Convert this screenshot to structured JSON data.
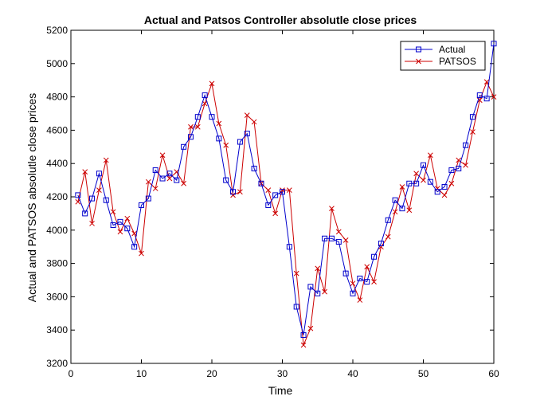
{
  "chart_data": {
    "type": "line",
    "title": "Actual and Patsos Controller absolutle close prices",
    "xlabel": "Time",
    "ylabel": "Actual and PATSOS absolutle close prices",
    "xlim": [
      0,
      60
    ],
    "ylim": [
      3200,
      5200
    ],
    "xticks": [
      0,
      10,
      20,
      30,
      40,
      50,
      60
    ],
    "yticks": [
      3200,
      3400,
      3600,
      3800,
      4000,
      4200,
      4400,
      4600,
      4800,
      5000,
      5200
    ],
    "grid": false,
    "legend_position": "top-right",
    "x": [
      1,
      2,
      3,
      4,
      5,
      6,
      7,
      8,
      9,
      10,
      11,
      12,
      13,
      14,
      15,
      16,
      17,
      18,
      19,
      20,
      21,
      22,
      23,
      24,
      25,
      26,
      27,
      28,
      29,
      30,
      31,
      32,
      33,
      34,
      35,
      36,
      37,
      38,
      39,
      40,
      41,
      42,
      43,
      44,
      45,
      46,
      47,
      48,
      49,
      50,
      51,
      52,
      53,
      54,
      55,
      56,
      57,
      58,
      59,
      60
    ],
    "series": [
      {
        "name": "Actual",
        "color": "#0000cc",
        "marker": "square",
        "values": [
          4210,
          4100,
          4190,
          4340,
          4180,
          4030,
          4050,
          4010,
          3900,
          4150,
          4190,
          4360,
          4310,
          4340,
          4300,
          4500,
          4560,
          4680,
          4810,
          4680,
          4550,
          4300,
          4230,
          4530,
          4580,
          4370,
          4280,
          4150,
          4210,
          4230,
          3900,
          3540,
          3370,
          3660,
          3620,
          3950,
          3950,
          3930,
          3740,
          3620,
          3710,
          3690,
          3840,
          3920,
          4060,
          4180,
          4130,
          4280,
          4280,
          4390,
          4290,
          4230,
          4260,
          4360,
          4370,
          4510,
          4680,
          4810,
          4790,
          5120
        ]
      },
      {
        "name": "PATSOS",
        "color": "#cc0000",
        "marker": "x",
        "values": [
          4170,
          4350,
          4040,
          4240,
          4420,
          4110,
          3990,
          4070,
          3980,
          3860,
          4290,
          4250,
          4450,
          4310,
          4350,
          4280,
          4620,
          4620,
          4760,
          4880,
          4640,
          4510,
          4210,
          4230,
          4690,
          4650,
          4280,
          4240,
          4100,
          4240,
          4240,
          3740,
          3310,
          3410,
          3770,
          3630,
          4130,
          3990,
          3940,
          3680,
          3580,
          3780,
          3690,
          3900,
          3960,
          4110,
          4260,
          4120,
          4340,
          4300,
          4450,
          4250,
          4210,
          4280,
          4420,
          4390,
          4590,
          4780,
          4890,
          4800
        ]
      }
    ]
  }
}
